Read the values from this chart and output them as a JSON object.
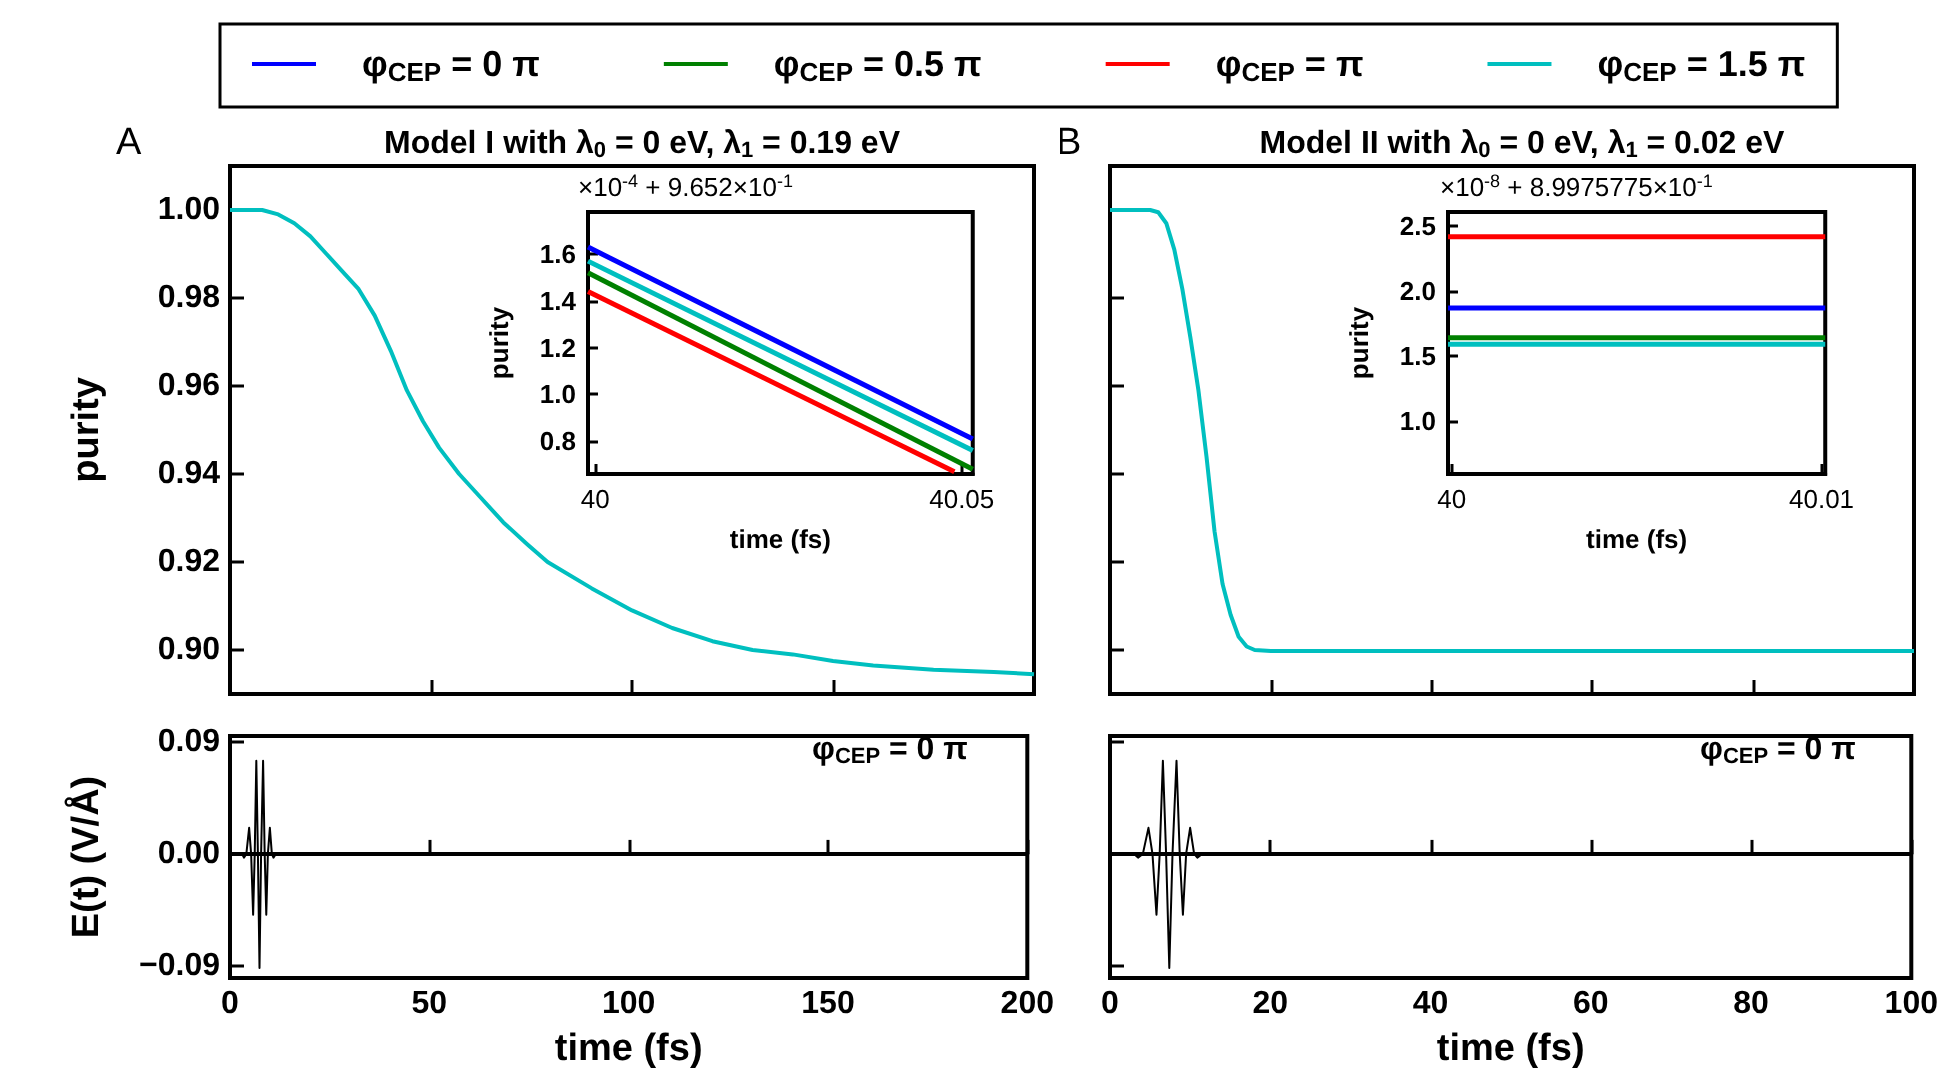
{
  "chart_data": [
    {
      "type": "line",
      "title": "Model I with λ$_{0}$ = 0 eV, λ$_{1}$ = 0.19 eV",
      "ylabel": "purity",
      "legend": "top",
      "tick_labels": "y",
      "xlim": [
        0,
        200
      ],
      "xticks": [
        {
          "value": 0,
          "label": null
        },
        {
          "value": 50,
          "label": null
        },
        {
          "value": 100,
          "label": null
        },
        {
          "value": 150,
          "label": null
        },
        {
          "value": 200,
          "label": null
        }
      ],
      "ylim": [
        0.89,
        1.01
      ],
      "yticks": [
        {
          "value": 0.9,
          "label": "0.90"
        },
        0.92,
        0.94,
        0.96,
        0.98,
        {
          "value": 1,
          "label": "1.00"
        }
      ],
      "annotations": [
        "A"
      ],
      "x": [
        0,
        8,
        12,
        16,
        20,
        24,
        28,
        32,
        36,
        40,
        44,
        48,
        52,
        57,
        62,
        68,
        74,
        79,
        90,
        100,
        110,
        120,
        130,
        140,
        150,
        160,
        175,
        190,
        200
      ],
      "series": [
        {
          "name": "φ$_{CEP}$ = 0 π",
          "color": "#0000ff",
          "values": [
            null,
            null,
            null,
            null,
            null,
            null,
            null,
            null,
            null,
            null,
            null,
            null,
            null,
            null,
            null,
            null,
            null,
            null,
            null,
            null,
            null,
            null,
            null,
            null,
            null,
            null,
            null,
            null,
            null
          ]
        },
        {
          "name": "φ$_{CEP}$ = 0.5 π",
          "color": "#008000",
          "values": [
            null,
            null,
            null,
            null,
            null,
            null,
            null,
            null,
            null,
            null,
            null,
            null,
            null,
            null,
            null,
            null,
            null,
            null,
            null,
            null,
            null,
            null,
            null,
            null,
            null,
            null,
            null,
            null,
            null
          ]
        },
        {
          "name": "φ$_{CEP}$ = π",
          "color": "#ff0000",
          "values": [
            null,
            null,
            null,
            null,
            null,
            null,
            null,
            null,
            null,
            null,
            null,
            null,
            null,
            null,
            null,
            null,
            null,
            null,
            null,
            null,
            null,
            null,
            null,
            null,
            null,
            null,
            null,
            null,
            null
          ]
        },
        {
          "name": "φ$_{CEP}$ = 1.5 π",
          "color": "#00bfbf",
          "values": [
            1.0,
            1.0,
            0.999,
            0.997,
            0.994,
            0.99,
            0.986,
            0.982,
            0.976,
            0.968,
            0.959,
            0.952,
            0.946,
            0.94,
            0.935,
            0.929,
            0.924,
            0.92,
            0.914,
            0.909,
            0.905,
            0.902,
            0.9,
            0.899,
            0.8975,
            0.8965,
            0.8955,
            0.895,
            0.8945
          ]
        }
      ]
    },
    {
      "type": "line",
      "xlabel": "time (fs)",
      "ylabel": "purity",
      "xlim": [
        39.999,
        40.0515
      ],
      "xticks": [
        40,
        40.05
      ],
      "ylim": [
        0.66,
        1.78
      ],
      "yticks": [
        0.8,
        {
          "value": 1,
          "label": "1.0"
        },
        1.2,
        1.4,
        1.6
      ],
      "annotations": [
        "×10$^{-4}$ + 9.652×10$^{-1}$"
      ],
      "series": [
        {
          "color": "#0000ff",
          "x": [
            39.999,
            40.0515
          ],
          "values": [
            1.63,
            0.81
          ]
        },
        {
          "color": "#008000",
          "x": [
            39.999,
            40.0515
          ],
          "values": [
            1.52,
            0.68
          ]
        },
        {
          "color": "#ff0000",
          "x": [
            39.999,
            40.049
          ],
          "values": [
            1.44,
            0.67
          ]
        },
        {
          "color": "#00bfbf",
          "x": [
            39.999,
            40.0515
          ],
          "values": [
            1.57,
            0.76
          ]
        }
      ]
    },
    {
      "type": "line",
      "xlabel": "time (fs)",
      "ylabel": "E(t) (V/Å)",
      "xlim": [
        0,
        200
      ],
      "xticks": [
        0,
        50,
        100,
        150,
        200
      ],
      "ylim": [
        -0.1,
        0.095
      ],
      "yticks": [
        {
          "value": -0.09,
          "label": "−0.09"
        },
        {
          "value": 0,
          "label": "0.00"
        },
        0.09
      ],
      "annotations": [
        "φ$_{CEP}$ = 0 π"
      ],
      "x": [
        0,
        3,
        3.5,
        4.1,
        4.8,
        5.3,
        5.8,
        6.2,
        6.6,
        7.0,
        7.4,
        7.8,
        8.3,
        8.7,
        9.1,
        9.5,
        10,
        10.5,
        10.9,
        11.5,
        200
      ],
      "series": [
        {
          "color": "#000000",
          "values": [
            0,
            0,
            -0.003,
            0,
            0.021,
            0,
            -0.049,
            0,
            0.075,
            0,
            -0.092,
            0,
            0.075,
            0,
            -0.049,
            0,
            0.021,
            0,
            -0.003,
            0,
            0
          ]
        }
      ]
    },
    {
      "type": "line",
      "title": "Model II with λ$_{0}$ = 0 eV, λ$_{1}$ = 0.02 eV",
      "tick_labels": false,
      "xlim": [
        0,
        100
      ],
      "xticks": [
        0,
        20,
        40,
        60,
        80,
        100
      ],
      "ylim": [
        0.89,
        1.01
      ],
      "yticks": [
        {
          "value": 0.9,
          "label": null
        },
        {
          "value": 0.92,
          "label": null
        },
        {
          "value": 0.94,
          "label": null
        },
        {
          "value": 0.96,
          "label": null
        },
        {
          "value": 0.98,
          "label": null
        },
        {
          "value": 1,
          "label": null
        }
      ],
      "annotations": [
        "B"
      ],
      "x": [
        0,
        5,
        6,
        7,
        8,
        9,
        10,
        11,
        12,
        13,
        14,
        15,
        16,
        17,
        18,
        20,
        100
      ],
      "series": [
        {
          "color": "#0000ff",
          "values": [
            null,
            null,
            null,
            null,
            null,
            null,
            null,
            null,
            null,
            null,
            null,
            null,
            null,
            null,
            null,
            null,
            null
          ]
        },
        {
          "color": "#008000",
          "values": [
            null,
            null,
            null,
            null,
            null,
            null,
            null,
            null,
            null,
            null,
            null,
            null,
            null,
            null,
            null,
            null,
            null
          ]
        },
        {
          "color": "#ff0000",
          "values": [
            null,
            null,
            null,
            null,
            null,
            null,
            null,
            null,
            null,
            null,
            null,
            null,
            null,
            null,
            null,
            null,
            null
          ]
        },
        {
          "color": "#00bfbf",
          "values": [
            1.0,
            1.0,
            0.9995,
            0.997,
            0.991,
            0.982,
            0.971,
            0.959,
            0.944,
            0.927,
            0.915,
            0.908,
            0.903,
            0.9008,
            0.9,
            0.8998,
            0.8998
          ]
        }
      ]
    },
    {
      "type": "line",
      "xlabel": "time (fs)",
      "ylabel": "purity",
      "xlim": [
        39.9999,
        40.0101
      ],
      "xticks": [
        40,
        40.01
      ],
      "ylim": [
        0.59,
        2.61
      ],
      "yticks": [
        {
          "value": 1,
          "label": "1.0"
        },
        1.5,
        {
          "value": 2,
          "label": "2.0"
        },
        2.5
      ],
      "annotations": [
        "×10$^{-8}$ + 8.9975775×10$^{-1}$"
      ],
      "x": [
        39.9999,
        40.0101
      ],
      "series": [
        {
          "color": "#0000ff",
          "values": [
            1.87,
            1.87
          ]
        },
        {
          "color": "#008000",
          "values": [
            1.64,
            1.64
          ]
        },
        {
          "color": "#ff0000",
          "values": [
            2.42,
            2.42
          ]
        },
        {
          "color": "#00bfbf",
          "values": [
            1.59,
            1.59
          ]
        }
      ]
    },
    {
      "type": "line",
      "xlabel": "time (fs)",
      "tick_labels": "x",
      "xlim": [
        0,
        100
      ],
      "xticks": [
        0,
        20,
        40,
        60,
        80,
        100
      ],
      "ylim": [
        -0.1,
        0.095
      ],
      "yticks": [
        {
          "value": -0.09,
          "label": null
        },
        {
          "value": 0,
          "label": null
        },
        {
          "value": 0.09,
          "label": null
        }
      ],
      "annotations": [
        "φ$_{CEP}$ = 0 π"
      ],
      "x": [
        0,
        3,
        3.5,
        4.1,
        4.8,
        5.3,
        5.8,
        6.2,
        6.6,
        7.0,
        7.4,
        7.8,
        8.3,
        8.7,
        9.1,
        9.5,
        10,
        10.5,
        10.9,
        11.5,
        100
      ],
      "series": [
        {
          "color": "#000000",
          "values": [
            0,
            0,
            -0.003,
            0,
            0.021,
            0,
            -0.049,
            0,
            0.075,
            0,
            -0.092,
            0,
            0.075,
            0,
            -0.049,
            0,
            0.021,
            0,
            -0.003,
            0,
            0
          ]
        }
      ]
    }
  ]
}
